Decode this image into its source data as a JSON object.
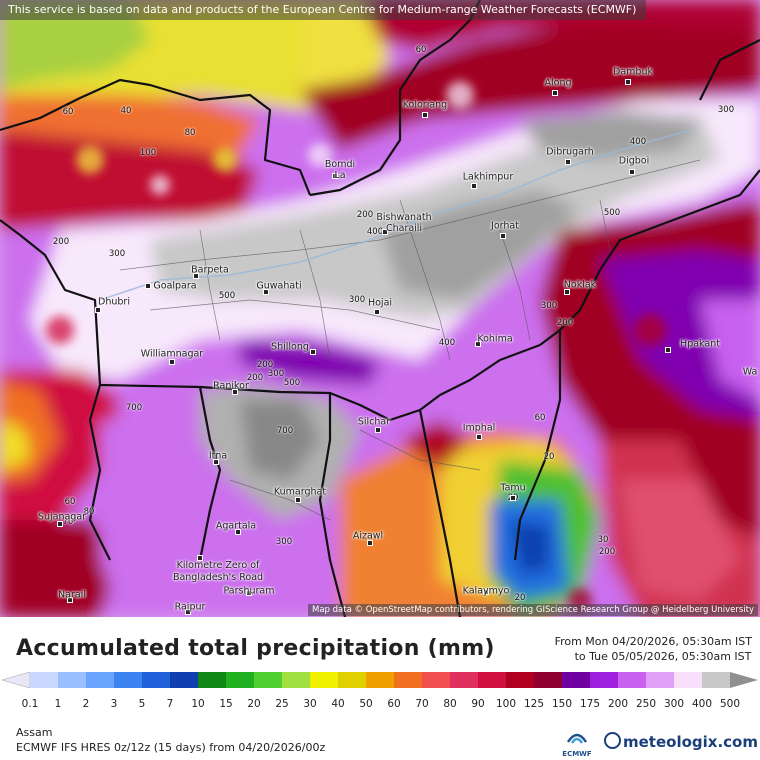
{
  "attribution_top": "This service is based on data and products of the European Centre for Medium-range Weather Forecasts (ECMWF)",
  "attribution_bottom": "Map data © OpenStreetMap contributors, rendering GIScience Research Group @ Heidelberg University",
  "title": "Accumulated total precipitation (mm)",
  "period_from": "From Mon 04/20/2026, 05:30am IST",
  "period_to": "to Tue 05/05/2026, 05:30am IST",
  "region": "Assam",
  "model_line": "ECMWF IFS HRES 0z/12z (15 days) from 04/20/2026/00z",
  "logo_ecmwf": "ECMWF",
  "logo_meteologix": "meteologix.com",
  "colorbar": {
    "labels": [
      "0.1",
      "1",
      "2",
      "3",
      "5",
      "7",
      "10",
      "15",
      "20",
      "25",
      "30",
      "40",
      "50",
      "60",
      "70",
      "80",
      "90",
      "100",
      "125",
      "150",
      "175",
      "200",
      "250",
      "300",
      "400",
      "500"
    ],
    "colors": [
      "#e8e8f8",
      "#c8d8ff",
      "#98c0ff",
      "#6aa4ff",
      "#3c82f0",
      "#2060d8",
      "#1040b0",
      "#108818",
      "#20b020",
      "#50d030",
      "#a0e040",
      "#f0f000",
      "#e0d000",
      "#f0a000",
      "#f07020",
      "#f05050",
      "#e03060",
      "#d01040",
      "#b00020",
      "#900030",
      "#7000a0",
      "#a020e0",
      "#c860f0",
      "#e0a0f8",
      "#f8e0fc",
      "#c8c8c8",
      "#909090"
    ]
  },
  "cities": [
    {
      "name": "Along"
    },
    {
      "name": "Dambuk"
    },
    {
      "name": "Koloriang"
    },
    {
      "name": "Dibrugarh"
    },
    {
      "name": "Digboi"
    },
    {
      "name": "Bomdi La"
    },
    {
      "name": "Lakhimpur"
    },
    {
      "name": "Bishwanath Charaili"
    },
    {
      "name": "Jorhat"
    },
    {
      "name": "Barpeta"
    },
    {
      "name": "Goalpara"
    },
    {
      "name": "Guwahati"
    },
    {
      "name": "Dhubri"
    },
    {
      "name": "Hojai"
    },
    {
      "name": "Noklak"
    },
    {
      "name": "Kohima"
    },
    {
      "name": "Hpakant"
    },
    {
      "name": "Williamnagar"
    },
    {
      "name": "Shillong"
    },
    {
      "name": "Ranikor"
    },
    {
      "name": "Silchar"
    },
    {
      "name": "Imphal"
    },
    {
      "name": "Itna"
    },
    {
      "name": "Kumarghat"
    },
    {
      "name": "Tamu"
    },
    {
      "name": "Sujanagar"
    },
    {
      "name": "Agartala"
    },
    {
      "name": "Aizawl"
    },
    {
      "name": "Kilometre Zero of Bangladesh's Road"
    },
    {
      "name": "Narail"
    },
    {
      "name": "Raipur"
    },
    {
      "name": "Parshuram"
    },
    {
      "name": "Kalaymyo"
    },
    {
      "name": "Wa"
    }
  ],
  "contour_labels": [
    "60",
    "40",
    "80",
    "100",
    "60",
    "300",
    "400",
    "200",
    "400",
    "500",
    "300",
    "200",
    "500",
    "300",
    "200",
    "300",
    "400",
    "200",
    "200",
    "300",
    "500",
    "700",
    "700",
    "60",
    "20",
    "20",
    "60",
    "70",
    "80",
    "300",
    "30",
    "200",
    "20"
  ]
}
